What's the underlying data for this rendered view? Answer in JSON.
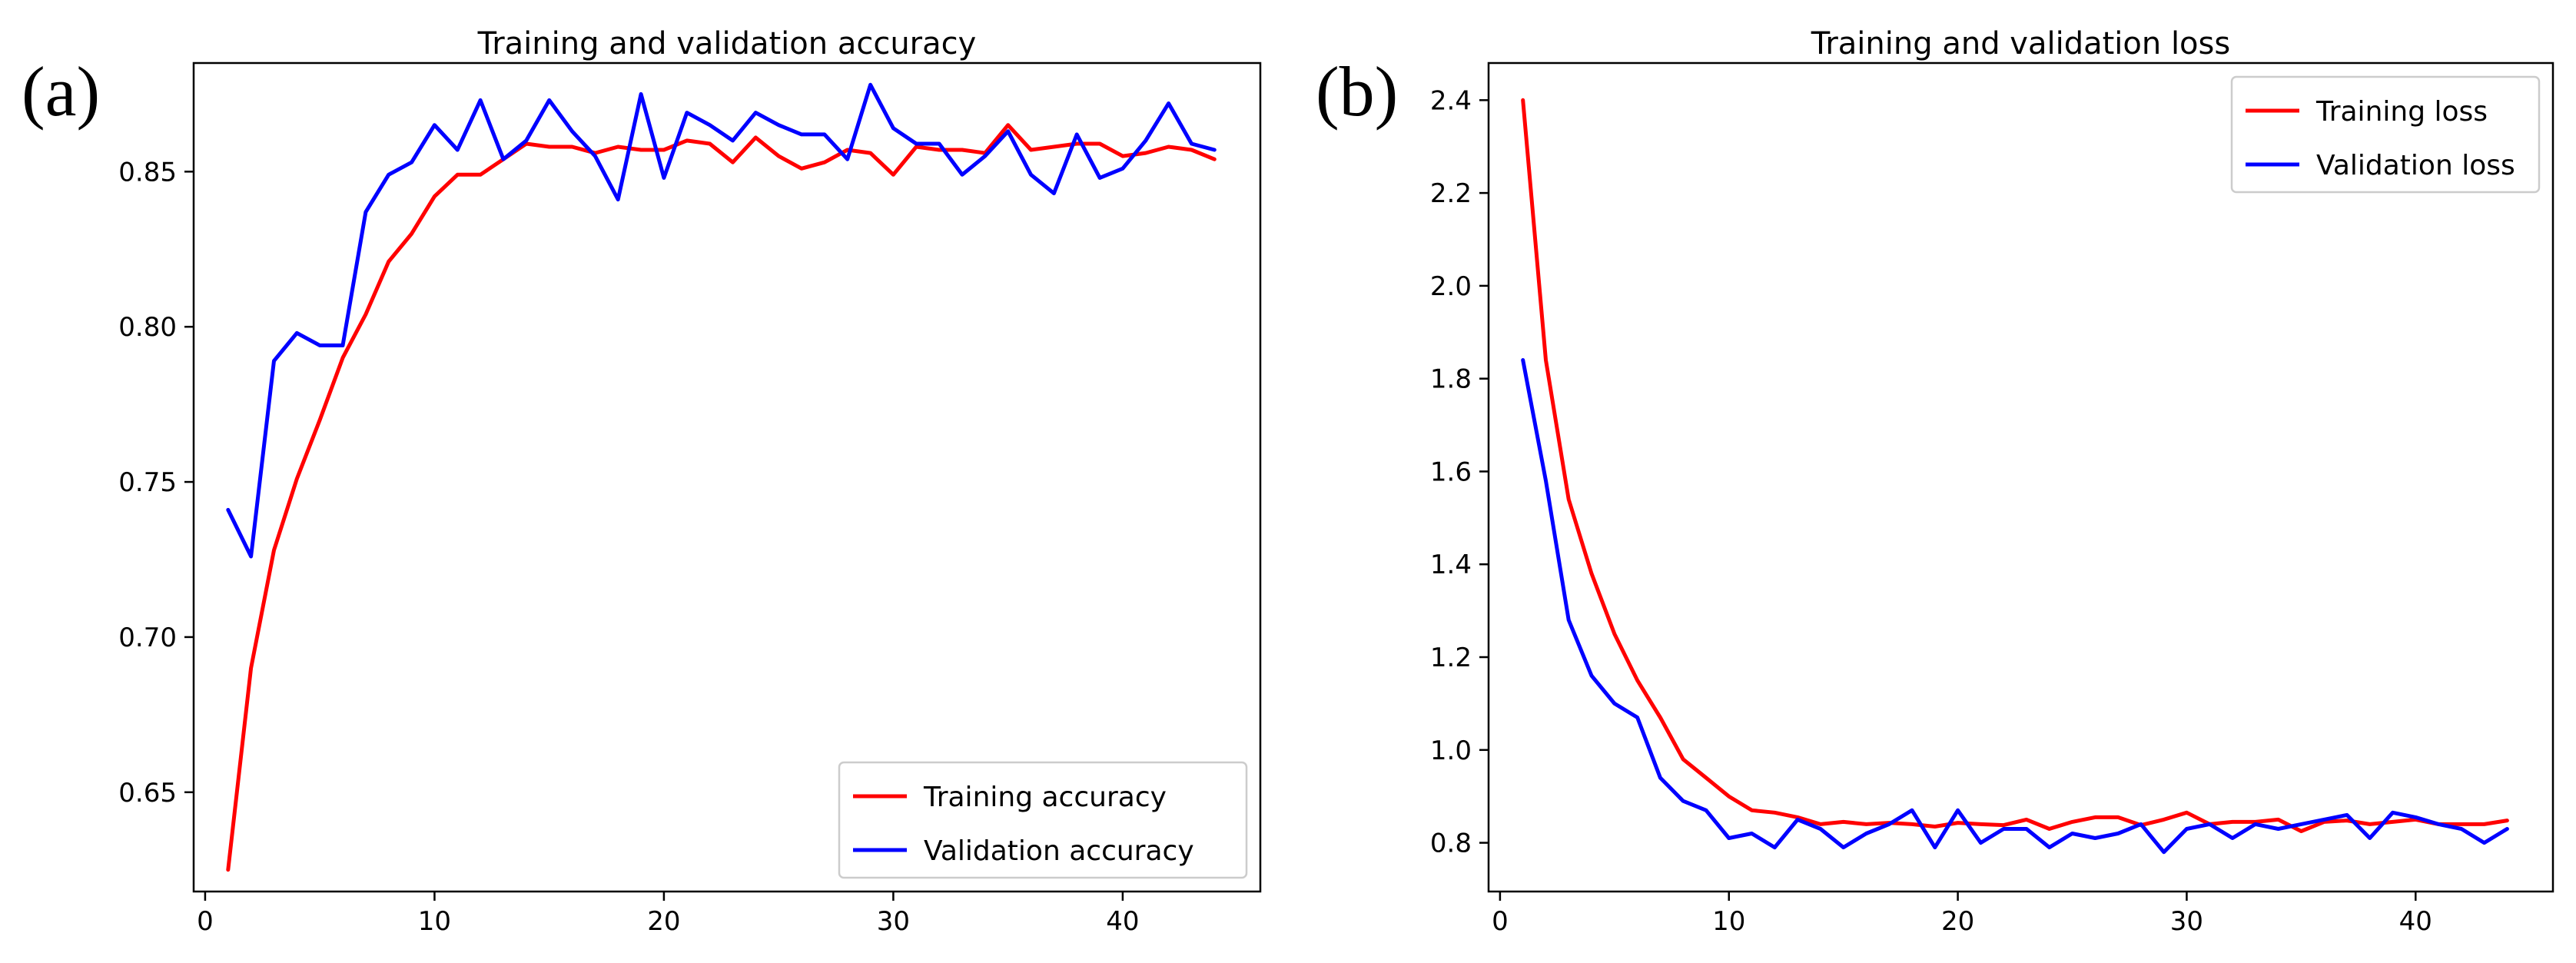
{
  "chart_data": [
    {
      "panel_label": "(a)",
      "type": "line",
      "title": "Training and validation accuracy",
      "xlabel": "",
      "ylabel": "",
      "xlim": [
        -0.5,
        46
      ],
      "ylim": [
        0.618,
        0.885
      ],
      "xticks": [
        0,
        10,
        20,
        30,
        40
      ],
      "yticks": [
        0.65,
        0.7,
        0.75,
        0.8,
        0.85
      ],
      "ytick_labels": [
        "0.65",
        "0.70",
        "0.75",
        "0.80",
        "0.85"
      ],
      "legend_position": "lower-right",
      "grid": false,
      "x": [
        1,
        2,
        3,
        4,
        5,
        6,
        7,
        8,
        9,
        10,
        11,
        12,
        13,
        14,
        15,
        16,
        17,
        18,
        19,
        20,
        21,
        22,
        23,
        24,
        25,
        26,
        27,
        28,
        29,
        30,
        31,
        32,
        33,
        34,
        35,
        36,
        37,
        38,
        39,
        40,
        41,
        42,
        43,
        44
      ],
      "series": [
        {
          "name": "Training accuracy",
          "color": "#ff0000",
          "values": [
            0.625,
            0.69,
            0.728,
            0.751,
            0.77,
            0.79,
            0.804,
            0.821,
            0.83,
            0.842,
            0.849,
            0.849,
            0.854,
            0.859,
            0.858,
            0.858,
            0.856,
            0.858,
            0.857,
            0.857,
            0.86,
            0.859,
            0.853,
            0.861,
            0.855,
            0.851,
            0.853,
            0.857,
            0.856,
            0.849,
            0.858,
            0.857,
            0.857,
            0.856,
            0.865,
            0.857,
            0.858,
            0.859,
            0.859,
            0.855,
            0.856,
            0.858,
            0.857,
            0.854
          ]
        },
        {
          "name": "Validation accuracy",
          "color": "#0000ff",
          "values": [
            0.741,
            0.726,
            0.789,
            0.798,
            0.794,
            0.794,
            0.837,
            0.849,
            0.853,
            0.865,
            0.857,
            0.873,
            0.854,
            0.86,
            0.873,
            0.863,
            0.855,
            0.841,
            0.875,
            0.848,
            0.869,
            0.865,
            0.86,
            0.869,
            0.865,
            0.862,
            0.862,
            0.854,
            0.878,
            0.864,
            0.859,
            0.859,
            0.849,
            0.855,
            0.863,
            0.849,
            0.843,
            0.862,
            0.848,
            0.851,
            0.86,
            0.872,
            0.859,
            0.857
          ]
        }
      ]
    },
    {
      "panel_label": "(b)",
      "type": "line",
      "title": "Training and validation loss",
      "xlabel": "",
      "ylabel": "",
      "xlim": [
        -0.5,
        46
      ],
      "ylim": [
        0.695,
        2.48
      ],
      "xticks": [
        0,
        10,
        20,
        30,
        40
      ],
      "yticks": [
        0.8,
        1.0,
        1.2,
        1.4,
        1.6,
        1.8,
        2.0,
        2.2,
        2.4
      ],
      "ytick_labels": [
        "0.8",
        "1.0",
        "1.2",
        "1.4",
        "1.6",
        "1.8",
        "2.0",
        "2.2",
        "2.4"
      ],
      "legend_position": "upper-right",
      "grid": false,
      "x": [
        1,
        2,
        3,
        4,
        5,
        6,
        7,
        8,
        9,
        10,
        11,
        12,
        13,
        14,
        15,
        16,
        17,
        18,
        19,
        20,
        21,
        22,
        23,
        24,
        25,
        26,
        27,
        28,
        29,
        30,
        31,
        32,
        33,
        34,
        35,
        36,
        37,
        38,
        39,
        40,
        41,
        42,
        43,
        44
      ],
      "series": [
        {
          "name": "Training loss",
          "color": "#ff0000",
          "values": [
            2.4,
            1.84,
            1.54,
            1.38,
            1.25,
            1.15,
            1.07,
            0.98,
            0.94,
            0.9,
            0.87,
            0.865,
            0.855,
            0.84,
            0.845,
            0.84,
            0.843,
            0.84,
            0.835,
            0.843,
            0.84,
            0.838,
            0.85,
            0.83,
            0.845,
            0.855,
            0.855,
            0.838,
            0.85,
            0.865,
            0.84,
            0.845,
            0.845,
            0.85,
            0.825,
            0.845,
            0.848,
            0.84,
            0.845,
            0.85,
            0.84,
            0.84,
            0.84,
            0.848
          ]
        },
        {
          "name": "Validation loss",
          "color": "#0000ff",
          "values": [
            1.84,
            1.58,
            1.28,
            1.16,
            1.1,
            1.07,
            0.94,
            0.89,
            0.87,
            0.81,
            0.82,
            0.79,
            0.85,
            0.83,
            0.79,
            0.82,
            0.84,
            0.87,
            0.79,
            0.87,
            0.8,
            0.83,
            0.83,
            0.79,
            0.82,
            0.81,
            0.82,
            0.84,
            0.78,
            0.83,
            0.84,
            0.81,
            0.84,
            0.83,
            0.84,
            0.85,
            0.86,
            0.81,
            0.865,
            0.855,
            0.84,
            0.83,
            0.8,
            0.83
          ]
        }
      ]
    }
  ]
}
